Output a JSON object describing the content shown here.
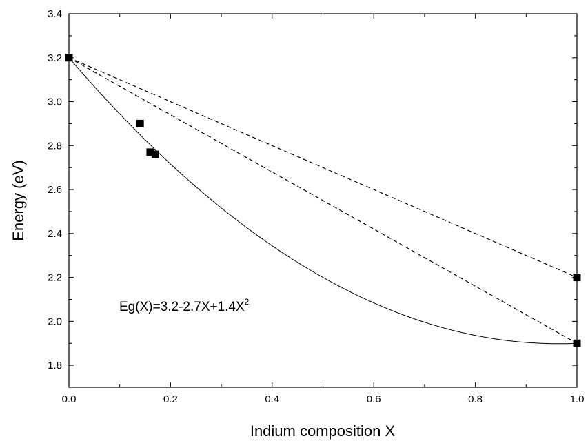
{
  "chart_data": {
    "type": "scatter",
    "title": "",
    "xlabel": "Indium composition X",
    "ylabel": "Energy (eV)",
    "xlim": [
      0.0,
      1.0
    ],
    "ylim": [
      1.7,
      3.4
    ],
    "x_ticks": [
      "0.0",
      "0.2",
      "0.4",
      "0.6",
      "0.8",
      "1.0"
    ],
    "y_ticks": [
      "1.8",
      "2.0",
      "2.2",
      "2.4",
      "2.6",
      "2.8",
      "3.0",
      "3.2",
      "3.4"
    ],
    "grid": false,
    "points": [
      {
        "x": 0.0,
        "y": 3.2
      },
      {
        "x": 0.14,
        "y": 2.9
      },
      {
        "x": 0.16,
        "y": 2.77
      },
      {
        "x": 0.17,
        "y": 2.76
      },
      {
        "x": 1.0,
        "y": 2.2
      },
      {
        "x": 1.0,
        "y": 1.9
      }
    ],
    "fit": {
      "style": "solid",
      "formula_base": "Eg(X)=3.2-2.7X+1.4X",
      "formula_superscript": "2",
      "coefficients": [
        3.2,
        -2.7,
        1.4
      ]
    },
    "dashed_lines": [
      {
        "from": [
          0.0,
          3.2
        ],
        "to": [
          1.0,
          2.2
        ]
      },
      {
        "from": [
          0.0,
          3.2
        ],
        "to": [
          1.0,
          1.9
        ]
      }
    ]
  }
}
